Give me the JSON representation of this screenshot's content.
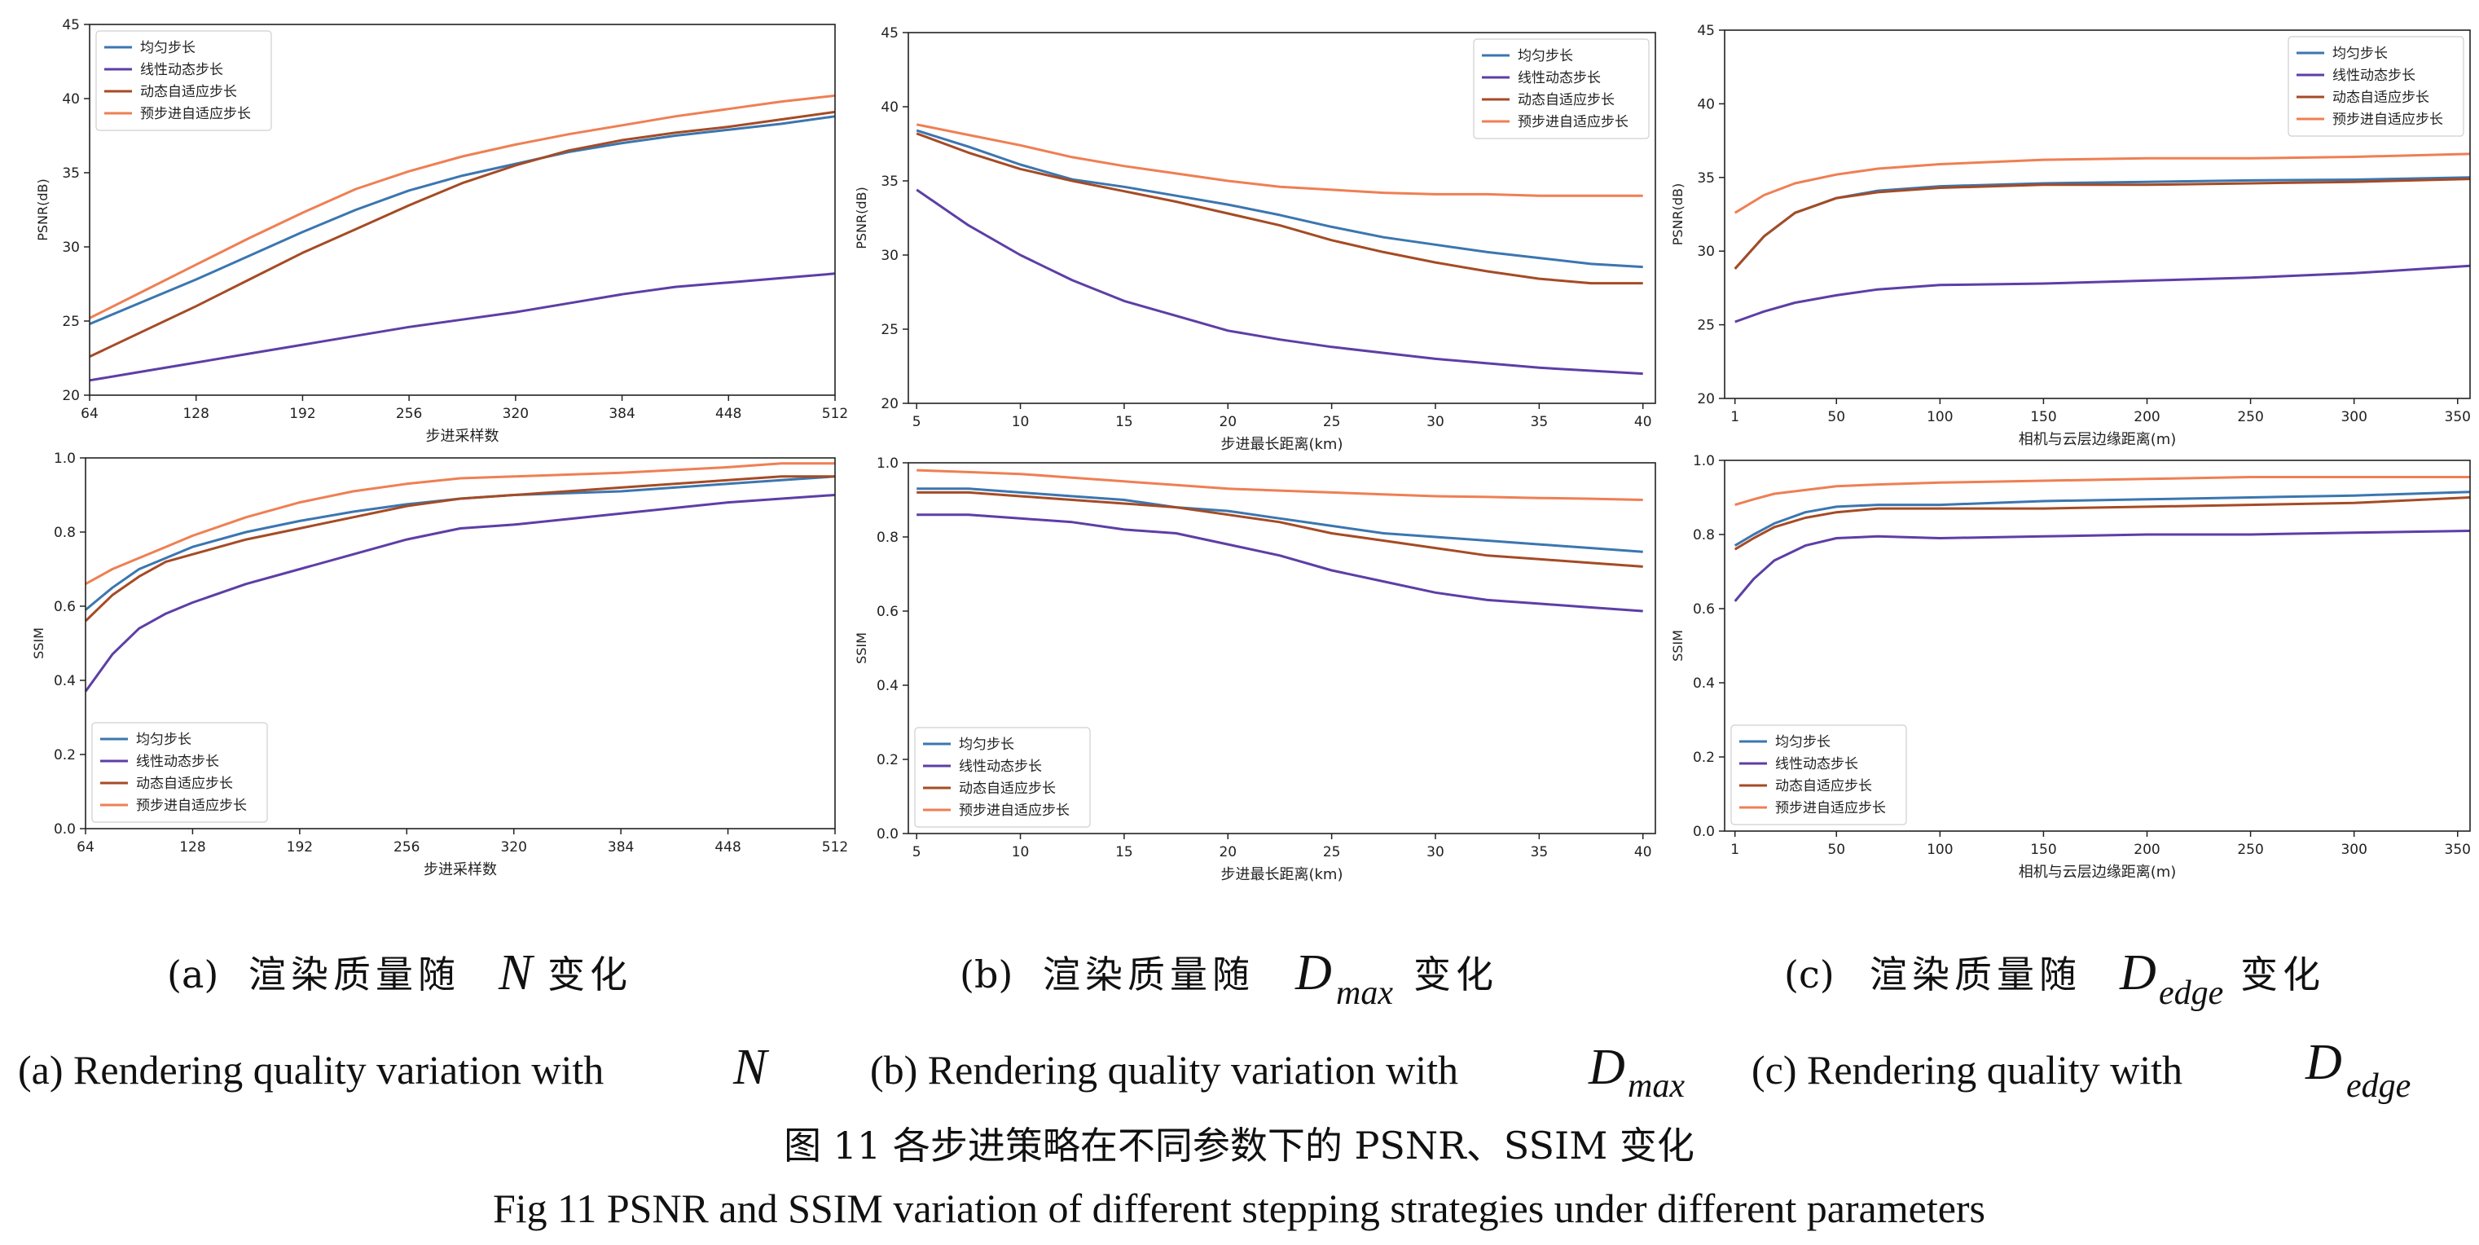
{
  "series_styles": [
    {
      "name": "均匀步长",
      "color": "#3b76b0"
    },
    {
      "name": "线性动态步长",
      "color": "#5d3ea6"
    },
    {
      "name": "动态自适应步长",
      "color": "#a54b25"
    },
    {
      "name": "预步进自适应步长",
      "color": "#ef7f53"
    }
  ],
  "chart_data": [
    {
      "type": "line",
      "panel": "a",
      "metric": "PSNR",
      "ylabel": "PSNR(dB)",
      "xlabel": "步进采样数",
      "xlim": [
        64,
        512
      ],
      "ylim": [
        20,
        45
      ],
      "xticks": [
        64,
        128,
        192,
        256,
        320,
        384,
        448,
        512
      ],
      "yticks": [
        20,
        25,
        30,
        35,
        40,
        45
      ],
      "grid": false,
      "legend": "top-left",
      "x": [
        64,
        96,
        128,
        160,
        192,
        224,
        256,
        288,
        320,
        352,
        384,
        416,
        448,
        480,
        512
      ],
      "series": [
        {
          "name": "均匀步长",
          "values": [
            24.8,
            26.3,
            27.8,
            29.4,
            31.0,
            32.5,
            33.8,
            34.8,
            35.6,
            36.4,
            37.0,
            37.5,
            37.9,
            38.3,
            38.8
          ]
        },
        {
          "name": "线性动态步长",
          "values": [
            21.0,
            21.6,
            22.2,
            22.8,
            23.4,
            24.0,
            24.6,
            25.1,
            25.6,
            26.2,
            26.8,
            27.3,
            27.6,
            27.9,
            28.2
          ]
        },
        {
          "name": "动态自适应步长",
          "values": [
            22.6,
            24.3,
            26.0,
            27.8,
            29.6,
            31.2,
            32.8,
            34.3,
            35.5,
            36.5,
            37.2,
            37.7,
            38.1,
            38.6,
            39.1
          ]
        },
        {
          "name": "预步进自适应步长",
          "values": [
            25.2,
            27.0,
            28.8,
            30.6,
            32.3,
            33.9,
            35.1,
            36.1,
            36.9,
            37.6,
            38.2,
            38.8,
            39.3,
            39.8,
            40.2
          ]
        }
      ]
    },
    {
      "type": "line",
      "panel": "b",
      "metric": "PSNR",
      "ylabel": "PSNR(dB)",
      "xlabel": "步进最长距离(km)",
      "xlim": [
        4.6,
        40.6
      ],
      "ylim": [
        20,
        45
      ],
      "xticks": [
        5,
        10,
        15,
        20,
        25,
        30,
        35,
        40
      ],
      "yticks": [
        20,
        25,
        30,
        35,
        40,
        45
      ],
      "grid": false,
      "legend": "top-right",
      "x": [
        5,
        7.5,
        10,
        12.5,
        15,
        17.5,
        20,
        22.5,
        25,
        27.5,
        30,
        32.5,
        35,
        37.5,
        40
      ],
      "series": [
        {
          "name": "均匀步长",
          "values": [
            38.4,
            37.3,
            36.1,
            35.1,
            34.6,
            34.0,
            33.4,
            32.7,
            31.9,
            31.2,
            30.7,
            30.2,
            29.8,
            29.4,
            29.2
          ]
        },
        {
          "name": "线性动态步长",
          "values": [
            34.4,
            32.0,
            30.0,
            28.3,
            26.9,
            25.9,
            24.9,
            24.3,
            23.8,
            23.4,
            23.0,
            22.7,
            22.4,
            22.2,
            22.0
          ]
        },
        {
          "name": "动态自适应步长",
          "values": [
            38.2,
            36.9,
            35.8,
            35.0,
            34.3,
            33.6,
            32.8,
            32.0,
            31.0,
            30.2,
            29.5,
            28.9,
            28.4,
            28.1,
            28.1
          ]
        },
        {
          "name": "预步进自适应步长",
          "values": [
            38.8,
            38.1,
            37.4,
            36.6,
            36.0,
            35.5,
            35.0,
            34.6,
            34.4,
            34.2,
            34.1,
            34.1,
            34.0,
            34.0,
            34.0
          ]
        }
      ]
    },
    {
      "type": "line",
      "panel": "c",
      "metric": "PSNR",
      "ylabel": "PSNR(dB)",
      "xlabel": "相机与云层边缘距离(m)",
      "xlim": [
        -4,
        356
      ],
      "ylim": [
        20,
        45
      ],
      "xticks": [
        1,
        50,
        100,
        150,
        200,
        250,
        300,
        350
      ],
      "yticks": [
        20,
        25,
        30,
        35,
        40,
        45
      ],
      "grid": false,
      "legend": "top-right",
      "x": [
        1,
        15,
        30,
        50,
        70,
        100,
        150,
        200,
        250,
        300,
        356
      ],
      "series": [
        {
          "name": "均匀步长",
          "values": [
            28.8,
            31.0,
            32.6,
            33.6,
            34.1,
            34.4,
            34.6,
            34.7,
            34.8,
            34.85,
            35.0
          ]
        },
        {
          "name": "线性动态步长",
          "values": [
            25.2,
            25.9,
            26.5,
            27.0,
            27.4,
            27.7,
            27.8,
            28.0,
            28.2,
            28.5,
            29.0
          ]
        },
        {
          "name": "动态自适应步长",
          "values": [
            28.8,
            31.0,
            32.6,
            33.6,
            34.0,
            34.3,
            34.5,
            34.5,
            34.6,
            34.7,
            34.9
          ]
        },
        {
          "name": "预步进自适应步长",
          "values": [
            32.6,
            33.8,
            34.6,
            35.2,
            35.6,
            35.9,
            36.2,
            36.3,
            36.3,
            36.4,
            36.6
          ]
        }
      ]
    },
    {
      "type": "line",
      "panel": "a",
      "metric": "SSIM",
      "ylabel": "SSIM",
      "xlabel": "步进采样数",
      "xlim": [
        64,
        512
      ],
      "ylim": [
        0.0,
        1.0
      ],
      "xticks": [
        64,
        128,
        192,
        256,
        320,
        384,
        448,
        512
      ],
      "yticks": [
        0.0,
        0.2,
        0.4,
        0.6,
        0.8,
        1.0
      ],
      "grid": false,
      "legend": "bottom-left",
      "x": [
        64,
        80,
        96,
        112,
        128,
        160,
        192,
        224,
        256,
        288,
        320,
        384,
        448,
        480,
        512
      ],
      "series": [
        {
          "name": "均匀步长",
          "values": [
            0.59,
            0.65,
            0.7,
            0.73,
            0.76,
            0.8,
            0.83,
            0.855,
            0.875,
            0.89,
            0.9,
            0.91,
            0.93,
            0.94,
            0.95
          ]
        },
        {
          "name": "线性动态步长",
          "values": [
            0.37,
            0.47,
            0.54,
            0.58,
            0.61,
            0.66,
            0.7,
            0.74,
            0.78,
            0.81,
            0.82,
            0.85,
            0.88,
            0.89,
            0.9
          ]
        },
        {
          "name": "动态自适应步长",
          "values": [
            0.56,
            0.63,
            0.68,
            0.72,
            0.74,
            0.78,
            0.81,
            0.84,
            0.87,
            0.89,
            0.9,
            0.92,
            0.94,
            0.95,
            0.95
          ]
        },
        {
          "name": "预步进自适应步长",
          "values": [
            0.66,
            0.7,
            0.73,
            0.76,
            0.79,
            0.84,
            0.88,
            0.91,
            0.93,
            0.945,
            0.95,
            0.96,
            0.975,
            0.985,
            0.985
          ]
        }
      ]
    },
    {
      "type": "line",
      "panel": "b",
      "metric": "SSIM",
      "ylabel": "SSIM",
      "xlabel": "步进最长距离(km)",
      "xlim": [
        4.6,
        40.6
      ],
      "ylim": [
        0.0,
        1.0
      ],
      "xticks": [
        5,
        10,
        15,
        20,
        25,
        30,
        35,
        40
      ],
      "yticks": [
        0.0,
        0.2,
        0.4,
        0.6,
        0.8,
        1.0
      ],
      "grid": false,
      "legend": "bottom-left",
      "x": [
        5,
        7.5,
        10,
        12.5,
        15,
        17.5,
        20,
        22.5,
        25,
        27.5,
        30,
        32.5,
        35,
        37.5,
        40
      ],
      "series": [
        {
          "name": "均匀步长",
          "values": [
            0.93,
            0.93,
            0.92,
            0.91,
            0.9,
            0.88,
            0.87,
            0.85,
            0.83,
            0.81,
            0.8,
            0.79,
            0.78,
            0.77,
            0.76
          ]
        },
        {
          "name": "线性动态步长",
          "values": [
            0.86,
            0.86,
            0.85,
            0.84,
            0.82,
            0.81,
            0.78,
            0.75,
            0.71,
            0.68,
            0.65,
            0.63,
            0.62,
            0.61,
            0.6
          ]
        },
        {
          "name": "动态自适应步长",
          "values": [
            0.92,
            0.92,
            0.91,
            0.9,
            0.89,
            0.88,
            0.86,
            0.84,
            0.81,
            0.79,
            0.77,
            0.75,
            0.74,
            0.73,
            0.72
          ]
        },
        {
          "name": "预步进自适应步长",
          "values": [
            0.98,
            0.975,
            0.97,
            0.96,
            0.95,
            0.94,
            0.93,
            0.925,
            0.92,
            0.915,
            0.91,
            0.908,
            0.905,
            0.903,
            0.9
          ]
        }
      ]
    },
    {
      "type": "line",
      "panel": "c",
      "metric": "SSIM",
      "ylabel": "SSIM",
      "xlabel": "相机与云层边缘距离(m)",
      "xlim": [
        -4,
        356
      ],
      "ylim": [
        0.0,
        1.0
      ],
      "xticks": [
        1,
        50,
        100,
        150,
        200,
        250,
        300,
        350
      ],
      "yticks": [
        0.0,
        0.2,
        0.4,
        0.6,
        0.8,
        1.0
      ],
      "grid": false,
      "legend": "bottom-left",
      "x": [
        1,
        10,
        20,
        35,
        50,
        70,
        100,
        150,
        200,
        250,
        300,
        356
      ],
      "series": [
        {
          "name": "均匀步长",
          "values": [
            0.77,
            0.8,
            0.83,
            0.86,
            0.875,
            0.88,
            0.88,
            0.89,
            0.895,
            0.9,
            0.905,
            0.915
          ]
        },
        {
          "name": "线性动态步长",
          "values": [
            0.62,
            0.68,
            0.73,
            0.77,
            0.79,
            0.795,
            0.79,
            0.795,
            0.8,
            0.8,
            0.805,
            0.81
          ]
        },
        {
          "name": "动态自适应步长",
          "values": [
            0.76,
            0.79,
            0.82,
            0.845,
            0.86,
            0.87,
            0.87,
            0.87,
            0.875,
            0.88,
            0.885,
            0.9
          ]
        },
        {
          "name": "预步进自适应步长",
          "values": [
            0.88,
            0.895,
            0.91,
            0.92,
            0.93,
            0.935,
            0.94,
            0.945,
            0.95,
            0.955,
            0.955,
            0.955
          ]
        }
      ]
    }
  ],
  "captions": {
    "sub_zh_prefix": "渲染质量随",
    "sub_zh_suffix": "变化",
    "a_tag": "(a)",
    "b_tag": "(b)",
    "c_tag": "(c)",
    "a_symbol": "N",
    "d_symbol": "D",
    "b_sub": "max",
    "c_sub": "edge",
    "a_en": "(a) Rendering quality variation with",
    "b_en": "(b) Rendering quality variation with",
    "c_en": "(c) Rendering quality with",
    "fig_zh": "图  11  各步进策略在不同参数下的 PSNR、SSIM 变化",
    "fig_en": "Fig 11    PSNR and SSIM variation of different stepping strategies under different parameters"
  }
}
